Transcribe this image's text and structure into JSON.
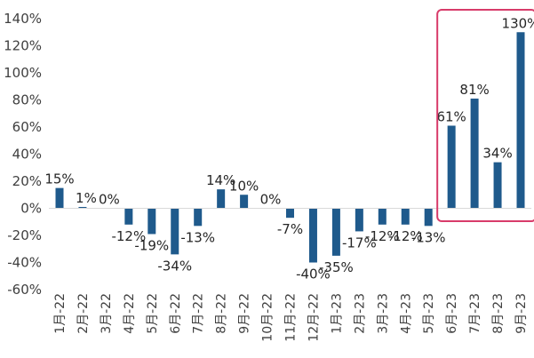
{
  "chart_data": {
    "type": "bar",
    "categories": [
      "1月-22",
      "2月-22",
      "3月-22",
      "4月-22",
      "5月-22",
      "6月-22",
      "7月-22",
      "8月-22",
      "9月-22",
      "10月-22",
      "11月-22",
      "12月-22",
      "1月-23",
      "2月-23",
      "3月-23",
      "4月-23",
      "5月-23",
      "6月-23",
      "7月-23",
      "8月-23",
      "9月-23"
    ],
    "values": [
      15,
      1,
      0,
      -12,
      -19,
      -34,
      -13,
      14,
      10,
      0,
      -7,
      -40,
      -35,
      -17,
      -12,
      -12,
      -13,
      61,
      81,
      34,
      130
    ],
    "data_labels": [
      "15%",
      "1%",
      "0%",
      "-12%",
      "-19%",
      "-34%",
      "-13%",
      "14%",
      "10%",
      "0%",
      "-7%",
      "-40%",
      "-35%",
      "-17%",
      "-12%",
      "-12%",
      "-13%",
      "61%",
      "81%",
      "34%",
      "130%"
    ],
    "ylim": [
      -60,
      140
    ],
    "yticks": [
      140,
      120,
      100,
      80,
      60,
      40,
      20,
      0,
      -20,
      -40,
      -60
    ],
    "ytick_labels": [
      "140%",
      "120%",
      "100%",
      "80%",
      "60%",
      "40%",
      "20%",
      "0%",
      "-20%",
      "-40%",
      "-60%"
    ],
    "bar_color": "#1f5a8c",
    "highlight_color": "#d83b6a",
    "highlight_categories": [
      "6月-23",
      "7月-23",
      "8月-23",
      "9月-23"
    ],
    "grid": false
  }
}
